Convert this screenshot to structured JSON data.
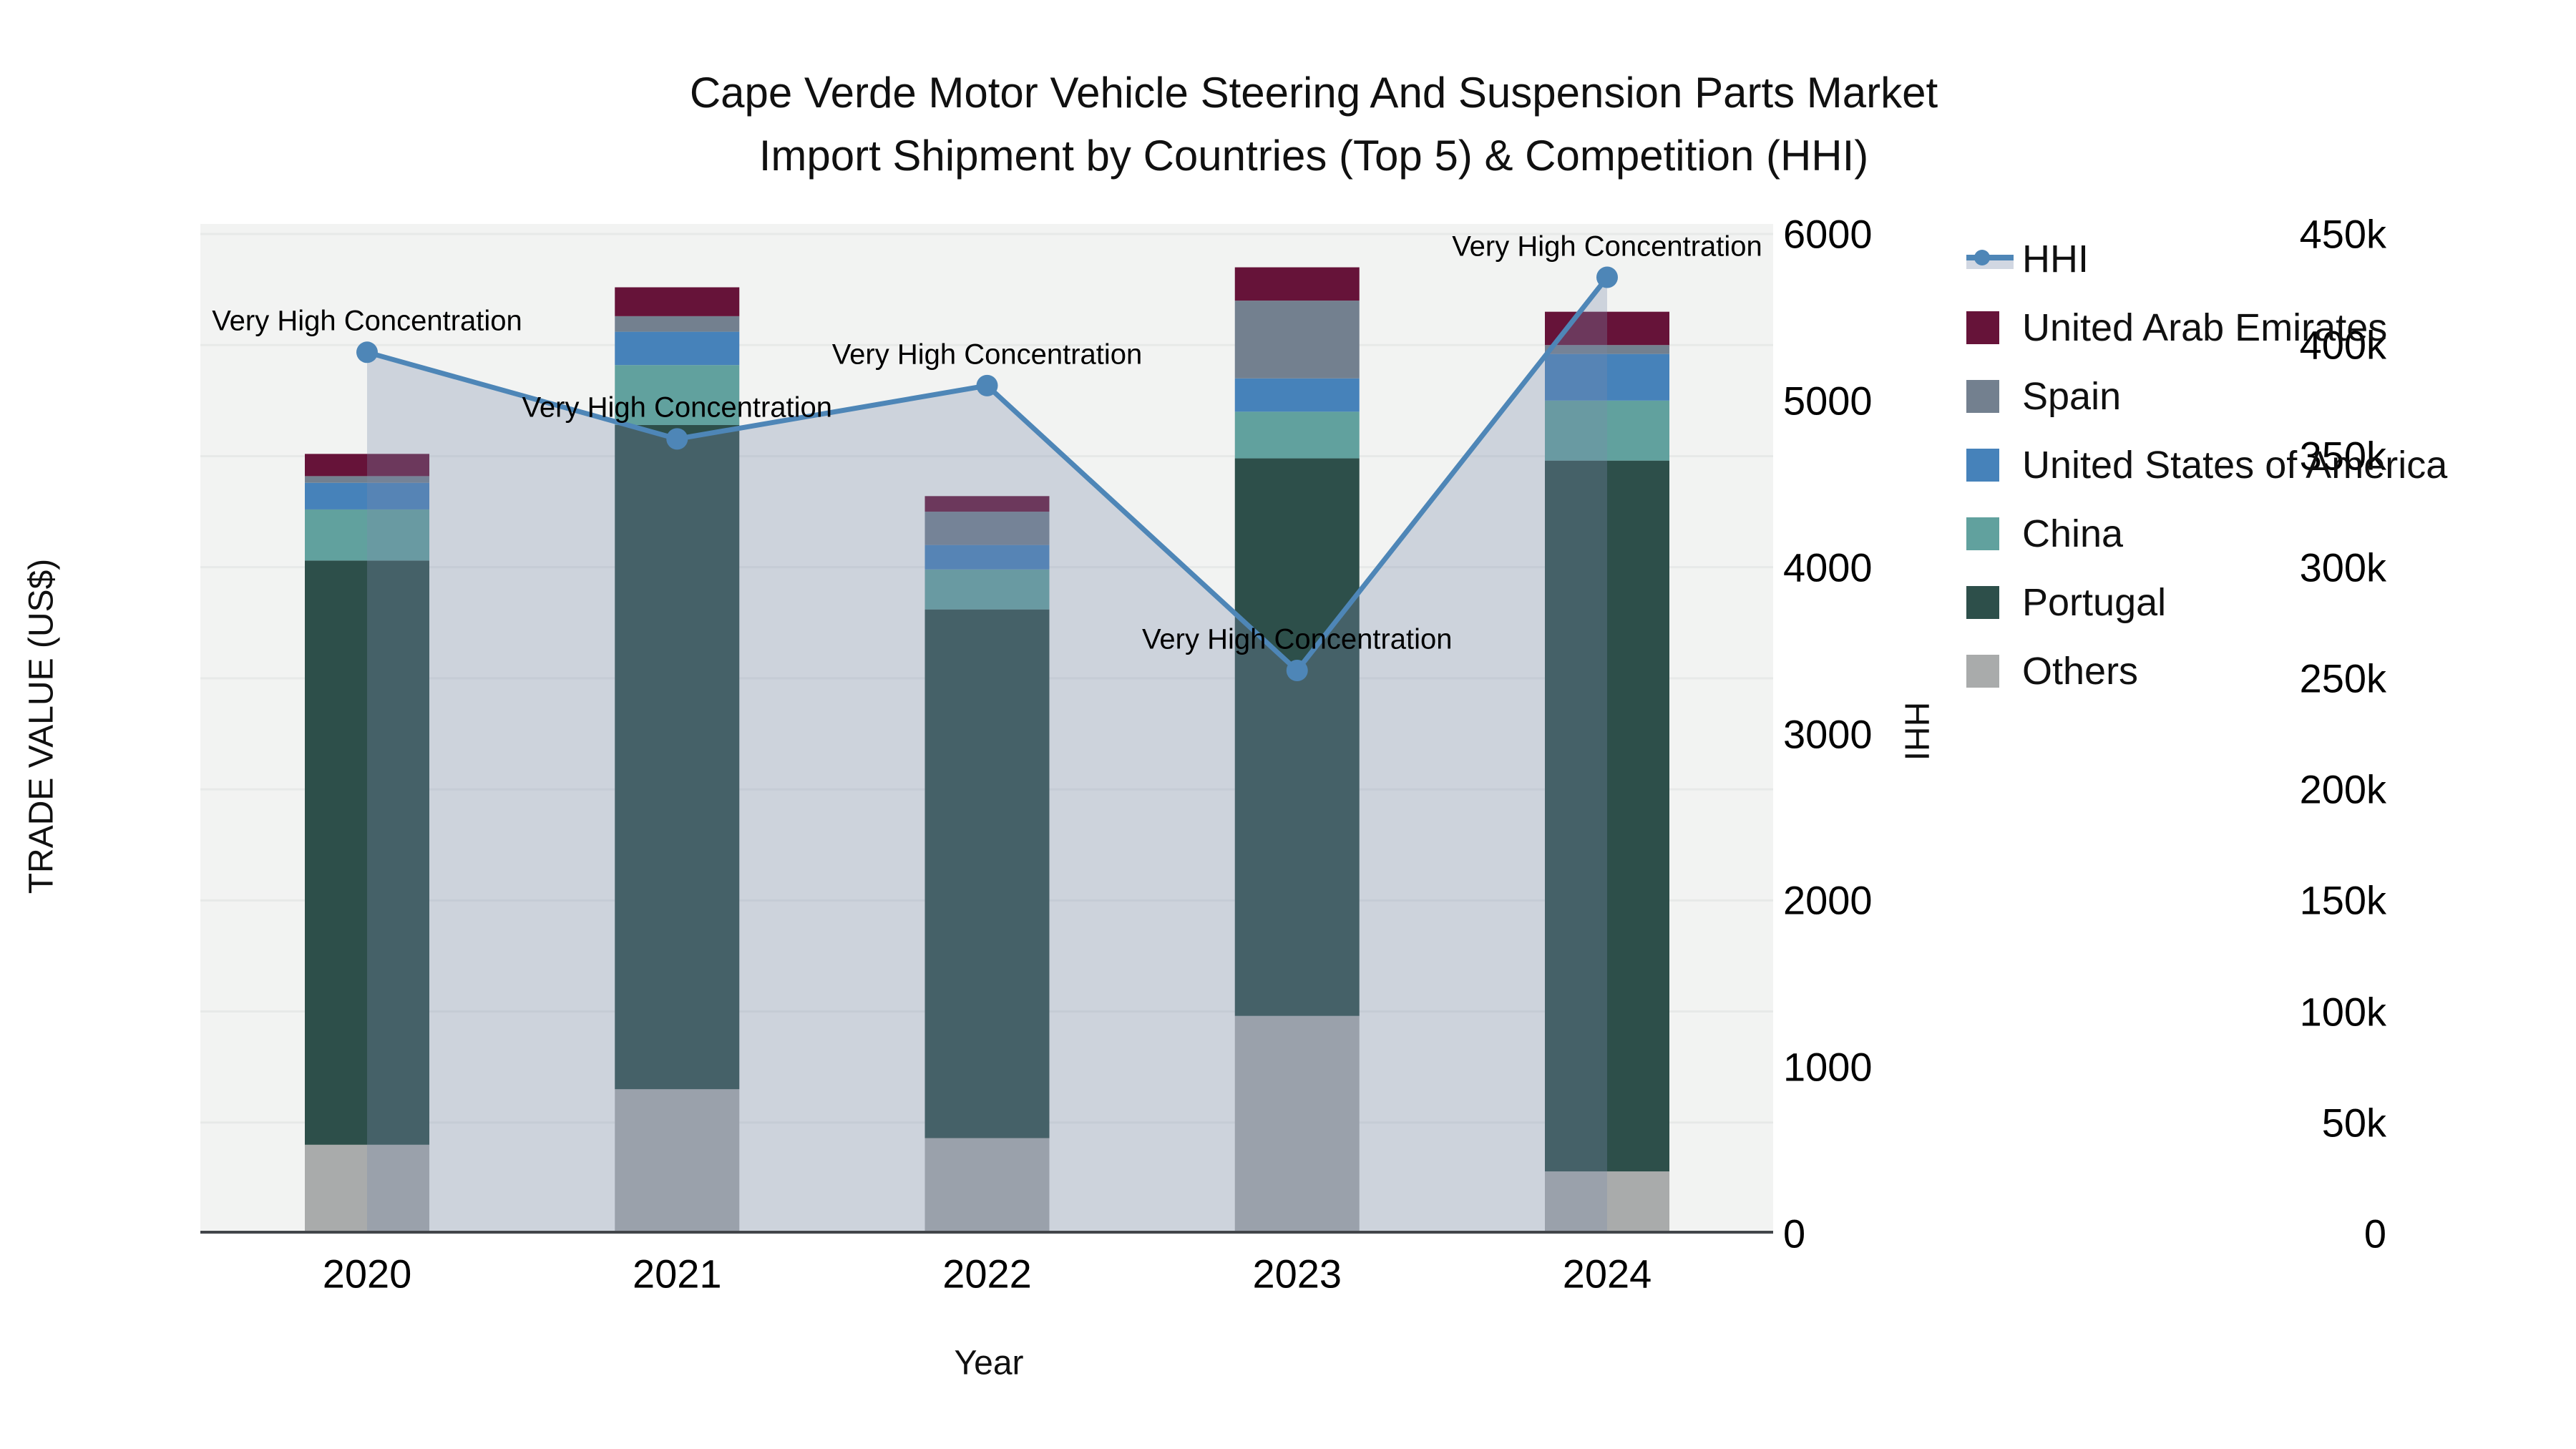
{
  "title": {
    "line1": "Cape Verde Motor Vehicle Steering And Suspension Parts Market",
    "line2": "Import Shipment by Countries (Top 5) & Competition (HHI)"
  },
  "chart_data": {
    "type": "stacked-bar+line",
    "categories": [
      "2020",
      "2021",
      "2022",
      "2023",
      "2024"
    ],
    "x": {
      "label": "Year"
    },
    "y_left": {
      "label": "TRADE VALUE (US$)",
      "ticks": [
        {
          "label": "0",
          "value": 0
        },
        {
          "label": "50k",
          "value": 50000
        },
        {
          "label": "100k",
          "value": 100000
        },
        {
          "label": "150k",
          "value": 150000
        },
        {
          "label": "200k",
          "value": 200000
        },
        {
          "label": "250k",
          "value": 250000
        },
        {
          "label": "300k",
          "value": 300000
        },
        {
          "label": "350k",
          "value": 350000
        },
        {
          "label": "400k",
          "value": 400000
        },
        {
          "label": "450k",
          "value": 450000
        }
      ],
      "range": [
        0,
        450000
      ]
    },
    "y_right": {
      "label": "HHI",
      "ticks": [
        {
          "label": "0",
          "value": 0
        },
        {
          "label": "1000",
          "value": 1000
        },
        {
          "label": "2000",
          "value": 2000
        },
        {
          "label": "3000",
          "value": 3000
        },
        {
          "label": "4000",
          "value": 4000
        },
        {
          "label": "5000",
          "value": 5000
        },
        {
          "label": "6000",
          "value": 6000
        }
      ],
      "range": [
        0,
        6000
      ]
    },
    "bar_series_bottom_to_top": [
      {
        "name": "Others",
        "color": "#a9abab",
        "values": [
          40000,
          65000,
          43000,
          98000,
          28000
        ]
      },
      {
        "name": "Portugal",
        "color": "#2d4f4a",
        "values": [
          263000,
          299000,
          238000,
          251000,
          320000
        ]
      },
      {
        "name": "China",
        "color": "#61a19e",
        "values": [
          23000,
          27000,
          18000,
          21000,
          27000
        ]
      },
      {
        "name": "United States of America",
        "color": "#4682ba",
        "values": [
          12000,
          15000,
          11000,
          15000,
          21000
        ]
      },
      {
        "name": "Spain",
        "color": "#73808f",
        "values": [
          3000,
          7000,
          15000,
          35000,
          4000
        ]
      },
      {
        "name": "United Arab Emirates",
        "color": "#661339",
        "values": [
          10000,
          13000,
          7000,
          15000,
          15000
        ]
      }
    ],
    "line_series": {
      "name": "HHI",
      "color": "#4e86b7",
      "area_fill": "rgba(123,140,172,0.31)",
      "values": [
        5290,
        4770,
        5090,
        3380,
        5740
      ]
    },
    "annotations": [
      {
        "text": "Very High Concentration"
      },
      {
        "text": "Very High Concentration"
      },
      {
        "text": "Very High Concentration"
      },
      {
        "text": "Very High Concentration"
      },
      {
        "text": "Very High Concentration"
      }
    ],
    "grid": true,
    "legend_position": "right",
    "plot_bg": "#f2f3f2",
    "grid_color": "#e7e9e8",
    "axis_line_color": "#42464a"
  }
}
